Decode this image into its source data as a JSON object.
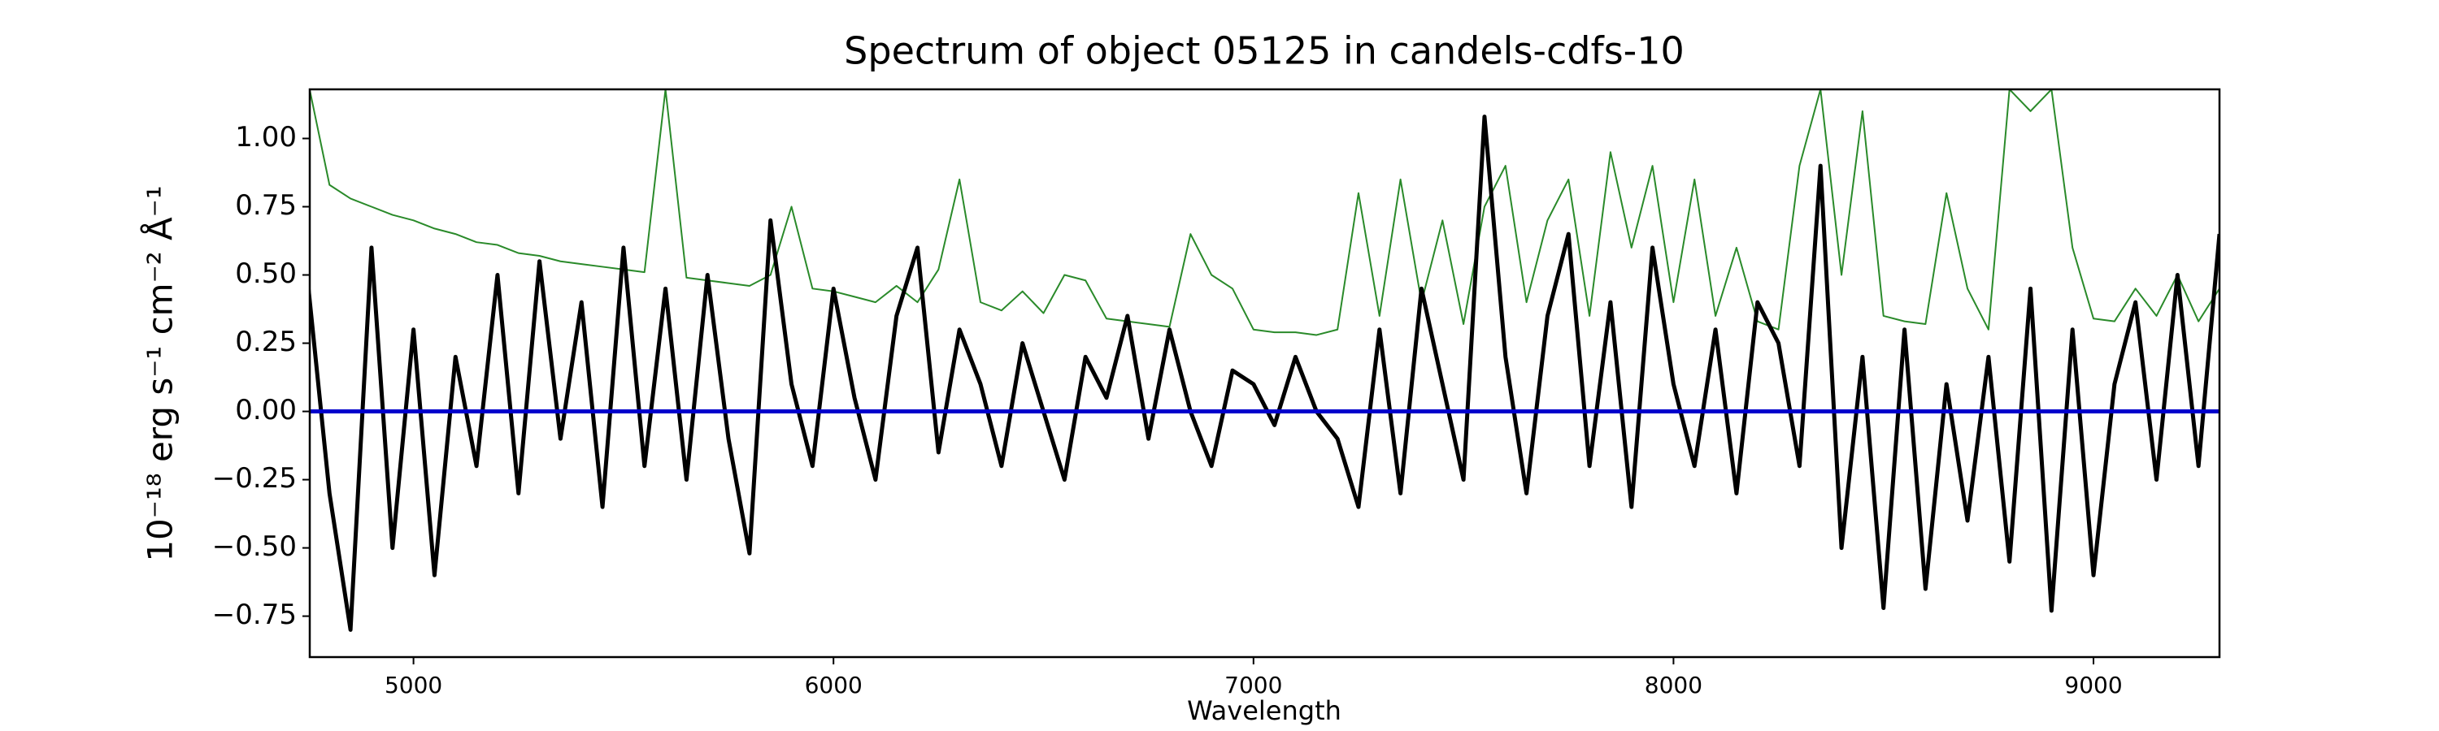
{
  "chart_data": {
    "type": "line",
    "title": "Spectrum of object 05125 in candels-cdfs-10",
    "xlabel": "Wavelength",
    "ylabel": "10⁻¹⁸ erg s⁻¹ cm⁻² Å⁻¹",
    "x": [
      4750,
      4800,
      4850,
      4900,
      4950,
      5000,
      5050,
      5100,
      5150,
      5200,
      5250,
      5300,
      5350,
      5400,
      5450,
      5500,
      5550,
      5600,
      5650,
      5700,
      5750,
      5800,
      5850,
      5900,
      5950,
      6000,
      6050,
      6100,
      6150,
      6200,
      6250,
      6300,
      6350,
      6400,
      6450,
      6500,
      6550,
      6600,
      6650,
      6700,
      6750,
      6800,
      6850,
      6900,
      6950,
      7000,
      7050,
      7100,
      7150,
      7200,
      7250,
      7300,
      7350,
      7400,
      7450,
      7500,
      7550,
      7600,
      7650,
      7700,
      7750,
      7800,
      7850,
      7900,
      7950,
      8000,
      8050,
      8100,
      8150,
      8200,
      8250,
      8300,
      8350,
      8400,
      8450,
      8500,
      8550,
      8600,
      8650,
      8700,
      8750,
      8800,
      8850,
      8900,
      8950,
      9000,
      9050,
      9100,
      9150,
      9200,
      9250,
      9300
    ],
    "series": [
      {
        "color": "#2a8a2a",
        "width": 2,
        "values": [
          1.2,
          0.83,
          0.78,
          0.75,
          0.72,
          0.7,
          0.67,
          0.65,
          0.62,
          0.61,
          0.58,
          0.57,
          0.55,
          0.54,
          0.53,
          0.52,
          0.51,
          1.18,
          0.49,
          0.48,
          0.47,
          0.46,
          0.5,
          0.75,
          0.45,
          0.44,
          0.42,
          0.4,
          0.46,
          0.4,
          0.52,
          0.85,
          0.4,
          0.37,
          0.44,
          0.36,
          0.5,
          0.48,
          0.34,
          0.33,
          0.32,
          0.31,
          0.65,
          0.5,
          0.45,
          0.3,
          0.29,
          0.29,
          0.28,
          0.3,
          0.8,
          0.35,
          0.85,
          0.4,
          0.7,
          0.32,
          0.75,
          0.9,
          0.4,
          0.7,
          0.85,
          0.35,
          0.95,
          0.6,
          0.9,
          0.4,
          0.85,
          0.35,
          0.6,
          0.33,
          0.3,
          0.9,
          1.18,
          0.5,
          1.1,
          0.35,
          0.33,
          0.32,
          0.8,
          0.45,
          0.3,
          1.18,
          1.1,
          1.18,
          0.6,
          0.34,
          0.33,
          0.45,
          0.35,
          0.5,
          0.33,
          0.45
        ]
      },
      {
        "color": "#000000",
        "width": 5,
        "values": [
          0.45,
          -0.3,
          -0.8,
          0.6,
          -0.5,
          0.3,
          -0.6,
          0.2,
          -0.2,
          0.5,
          -0.3,
          0.55,
          -0.1,
          0.4,
          -0.35,
          0.6,
          -0.2,
          0.45,
          -0.25,
          0.5,
          -0.1,
          -0.52,
          0.7,
          0.1,
          -0.2,
          0.45,
          0.05,
          -0.25,
          0.35,
          0.6,
          -0.15,
          0.3,
          0.1,
          -0.2,
          0.25,
          0.0,
          -0.25,
          0.2,
          0.05,
          0.35,
          -0.1,
          0.3,
          0.0,
          -0.2,
          0.15,
          0.1,
          -0.05,
          0.2,
          0.0,
          -0.1,
          -0.35,
          0.3,
          -0.3,
          0.45,
          0.1,
          -0.25,
          1.08,
          0.2,
          -0.3,
          0.35,
          0.65,
          -0.2,
          0.4,
          -0.35,
          0.6,
          0.1,
          -0.2,
          0.3,
          -0.3,
          0.4,
          0.25,
          -0.2,
          0.9,
          -0.5,
          0.2,
          -0.72,
          0.3,
          -0.65,
          0.1,
          -0.4,
          0.2,
          -0.55,
          0.45,
          -0.73,
          0.3,
          -0.6,
          0.1,
          0.4,
          -0.25,
          0.5,
          -0.2,
          0.65
        ]
      }
    ],
    "hline": {
      "value": 0,
      "color": "#0000cc"
    },
    "xlim": [
      4753,
      9300
    ],
    "ylim": [
      -0.9,
      1.18
    ],
    "xticks": [
      5000,
      6000,
      7000,
      8000,
      9000
    ],
    "yticks": [
      {
        "value": -0.75,
        "label": "−0.75"
      },
      {
        "value": -0.5,
        "label": "−0.50"
      },
      {
        "value": -0.25,
        "label": "−0.25"
      },
      {
        "value": 0,
        "label": "0.00"
      },
      {
        "value": 0.25,
        "label": "0.25"
      },
      {
        "value": 0.5,
        "label": "0.50"
      },
      {
        "value": 0.75,
        "label": "0.75"
      },
      {
        "value": 1,
        "label": "1.00"
      }
    ]
  }
}
